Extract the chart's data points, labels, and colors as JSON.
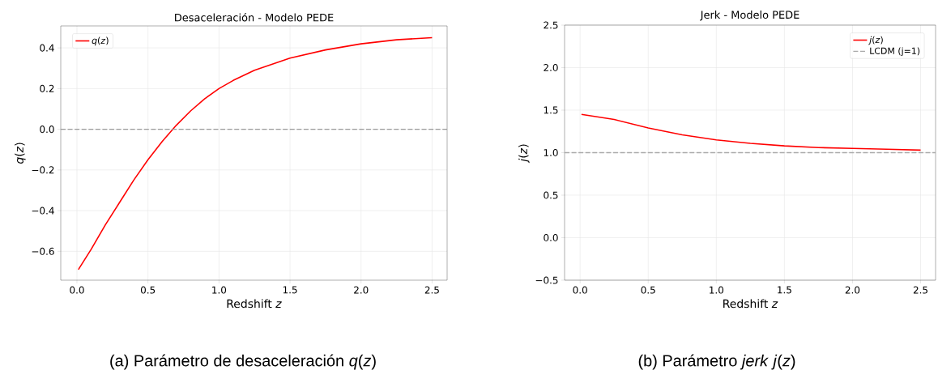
{
  "chart_data": [
    {
      "type": "line",
      "title": "Desaceleración - Modelo PEDE",
      "xlabel": "Redshift *z*",
      "ylabel": "*q*(*z*)",
      "series": [
        {
          "name": "*q*(*z*)",
          "color": "#ff0000",
          "x": [
            0.01,
            0.1,
            0.2,
            0.3,
            0.4,
            0.5,
            0.6,
            0.7,
            0.8,
            0.9,
            1.0,
            1.1,
            1.25,
            1.5,
            1.75,
            2.0,
            2.25,
            2.5
          ],
          "values": [
            -0.69,
            -0.59,
            -0.47,
            -0.36,
            -0.25,
            -0.15,
            -0.06,
            0.02,
            0.09,
            0.15,
            0.2,
            0.24,
            0.29,
            0.35,
            0.39,
            0.42,
            0.44,
            0.45
          ]
        }
      ],
      "xlim": [
        -0.114,
        2.606
      ],
      "ylim": [
        -0.742,
        0.508
      ],
      "xticks": [
        {
          "value": 0,
          "label": "0.0"
        },
        {
          "value": 0.5,
          "label": "0.5"
        },
        {
          "value": 1,
          "label": "1.0"
        },
        {
          "value": 1.5,
          "label": "1.5"
        },
        {
          "value": 2,
          "label": "2.0"
        },
        {
          "value": 2.5,
          "label": "2.5"
        }
      ],
      "yticks": [
        {
          "value": -0.6,
          "label": "−0.6"
        },
        {
          "value": -0.4,
          "label": "−0.4"
        },
        {
          "value": -0.2,
          "label": "−0.2"
        },
        {
          "value": 0,
          "label": "0.0"
        },
        {
          "value": 0.2,
          "label": "0.2"
        },
        {
          "value": 0.4,
          "label": "0.4"
        }
      ],
      "grid": true,
      "legend": "top left",
      "ref_lines": [
        {
          "axis": "y",
          "value": 0,
          "color": "#999999",
          "line_style": "dashed"
        }
      ],
      "annotations": [
        "(a) Parámetro de desaceleración *q*(*z*)"
      ]
    },
    {
      "type": "line",
      "title": "Jerk - Modelo PEDE",
      "xlabel": "Redshift *z*",
      "ylabel": "*j*(*z*)",
      "series": [
        {
          "name": "*j*(*z*)",
          "color": "#ff0000",
          "x": [
            0.01,
            0.25,
            0.5,
            0.75,
            1.0,
            1.25,
            1.5,
            1.75,
            2.0,
            2.25,
            2.5
          ],
          "values": [
            1.45,
            1.39,
            1.29,
            1.21,
            1.15,
            1.11,
            1.08,
            1.06,
            1.05,
            1.04,
            1.03
          ]
        }
      ],
      "xlim": [
        -0.114,
        2.61
      ],
      "ylim": [
        -0.5,
        2.5
      ],
      "xticks": [
        {
          "value": 0,
          "label": "0.0"
        },
        {
          "value": 0.5,
          "label": "0.5"
        },
        {
          "value": 1,
          "label": "1.0"
        },
        {
          "value": 1.5,
          "label": "1.5"
        },
        {
          "value": 2,
          "label": "2.0"
        },
        {
          "value": 2.5,
          "label": "2.5"
        }
      ],
      "yticks": [
        {
          "value": -0.5,
          "label": "−0.5"
        },
        {
          "value": 0,
          "label": "0.0"
        },
        {
          "value": 0.5,
          "label": "0.5"
        },
        {
          "value": 1,
          "label": "1.0"
        },
        {
          "value": 1.5,
          "label": "1.5"
        },
        {
          "value": 2,
          "label": "2.0"
        },
        {
          "value": 2.5,
          "label": "2.5"
        }
      ],
      "grid": true,
      "legend": "top right",
      "ref_lines": [
        {
          "axis": "y",
          "value": 1,
          "label": "LCDM (j=1)",
          "color": "#aaaaaa",
          "line_style": "dashed"
        }
      ],
      "annotations": [
        "(b) Parámetro *jerk* *j*(*z*)"
      ]
    }
  ]
}
